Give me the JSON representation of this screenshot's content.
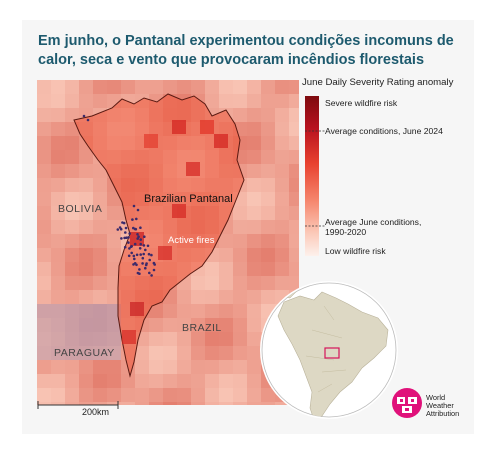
{
  "title": "Em junho, o Pantanal experimentou condições incomuns de calor, seca e vento que provocaram incêndios florestais",
  "legend": {
    "title": "June Daily Severity Rating anomaly",
    "items": [
      {
        "label": "Severe wildfire risk",
        "position": 0.0
      },
      {
        "label": "Average conditions, June 2024",
        "position": 0.26
      },
      {
        "label": "Average June conditions, 1990-2020",
        "position": 0.8
      },
      {
        "label": "Low wildfire risk",
        "position": 1.0
      }
    ],
    "colors": [
      "#7e0b0f",
      "#c8182a",
      "#ef4d3a",
      "#f7a08c",
      "#fbd7cc",
      "#fdf2ee"
    ]
  },
  "map": {
    "labels": {
      "pantanal": "Brazilian Pantanal",
      "fires": "Active fires",
      "bolivia": "BOLIVIA",
      "brazil": "BRAZIL",
      "paraguay": "PARAGUAY"
    },
    "scale": "200km"
  },
  "brand": {
    "name": "World Weather Attribution",
    "lines": [
      "World",
      "Weather",
      "Attribution"
    ],
    "color": "#e0117a"
  },
  "colors": {
    "title": "#1d5a6e",
    "fire_dots": "#3b2a6b",
    "outline": "#5a1a12"
  }
}
